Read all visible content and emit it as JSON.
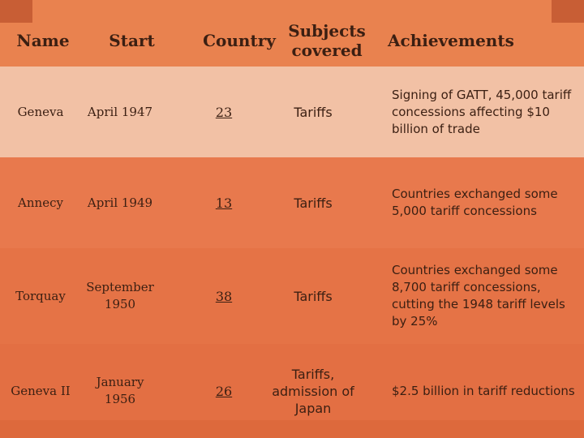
{
  "header": {
    "name": "Name",
    "start": "Start",
    "country": "Country",
    "subjects": "Subjects covered",
    "achievements": "Achievements"
  },
  "rows": [
    {
      "name": "Geneva",
      "start": "April 1947",
      "country": "23",
      "subjects": "Tariffs",
      "achievements": "Signing of GATT, 45,000 tariff concessions affecting $10 billion of trade"
    },
    {
      "name": "Annecy",
      "start": "April 1949",
      "country": "13",
      "subjects": "Tariffs",
      "achievements": "Countries exchanged some 5,000 tariff concessions"
    },
    {
      "name": "Torquay",
      "start": "September 1950",
      "country": "38",
      "subjects": "Tariffs",
      "achievements": "Countries exchanged some 8,700 tariff concessions, cutting the 1948 tariff levels by 25%"
    },
    {
      "name": "Geneva II",
      "start": "January 1956",
      "country": "26",
      "subjects": "Tariffs, admission of Japan",
      "achievements": "$2.5 billion in tariff reductions"
    }
  ],
  "colors": {
    "background": "#e8774a",
    "highlight_row": "#f2c1a5",
    "text": "#3b1f12"
  }
}
